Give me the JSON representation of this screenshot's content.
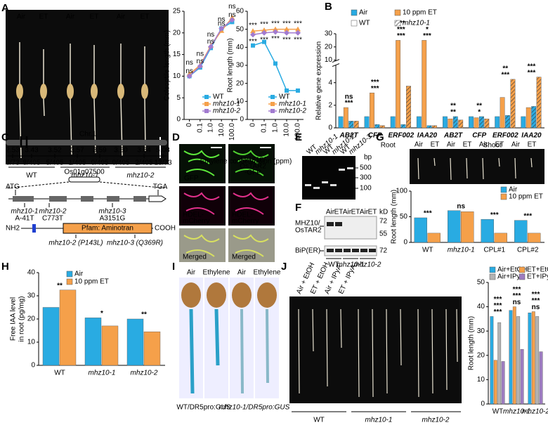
{
  "chart_data": [
    {
      "type": "line",
      "ylabel": "Coleoptile length (mm)",
      "xlabel": "Ethylene concentration (ppm)",
      "categories": [
        "0",
        "0.1",
        "1.0",
        "10.0",
        "100.0"
      ],
      "ylim": [
        0,
        25
      ],
      "yticks": [
        0,
        5,
        10,
        15,
        20,
        25
      ],
      "legend": "lower right",
      "series": [
        {
          "name": "WT",
          "color": "#29abe2",
          "marker": "square",
          "values": [
            10,
            12,
            16.5,
            21,
            22.5
          ]
        },
        {
          "name": "mhz10-1",
          "color": "#f5a04a",
          "marker": "triangle",
          "values": [
            10.5,
            12.5,
            17,
            20.5,
            23.5
          ],
          "point_labels": [
            "ns",
            "ns",
            "ns",
            "ns",
            "ns"
          ]
        },
        {
          "name": "mhz10-2",
          "color": "#a27bd0",
          "marker": "diamond",
          "values": [
            10,
            12.3,
            16.8,
            21,
            23
          ],
          "point_labels": [
            "ns",
            "ns",
            "ns",
            "ns",
            "ns"
          ]
        }
      ]
    },
    {
      "type": "line",
      "ylabel": "Root length (mm)",
      "categories": [
        "0",
        "0.1",
        "1.0",
        "10.0",
        "100.0"
      ],
      "ylim": [
        0,
        60
      ],
      "yticks": [
        0,
        10,
        20,
        30,
        40,
        50,
        60
      ],
      "legend": "lower right",
      "series": [
        {
          "name": "WT",
          "color": "#29abe2",
          "marker": "square",
          "values": [
            41,
            43,
            31,
            16,
            16
          ]
        },
        {
          "name": "mhz10-1",
          "color": "#f5a04a",
          "marker": "triangle",
          "values": [
            49,
            49.5,
            50,
            50,
            50
          ],
          "point_labels": [
            "***",
            "***",
            "***",
            "***",
            "***"
          ]
        },
        {
          "name": "mhz10-2",
          "color": "#a27bd0",
          "marker": "diamond",
          "values": [
            47,
            48,
            48.5,
            48,
            48
          ],
          "point_labels": [
            "***",
            "***",
            "***",
            "***",
            "***"
          ]
        }
      ]
    },
    {
      "type": "bar",
      "ylabel": "Relative gene expression",
      "categories": [
        "AB2T",
        "CFP",
        "ERF002",
        "IAA20",
        "AB2T",
        "CFP",
        "ERF002",
        "IAA20"
      ],
      "group_labels": [
        "Root",
        "Shoot"
      ],
      "ylim": [
        0,
        30
      ],
      "ybreak": [
        5.5,
        10
      ],
      "yticks": [
        0,
        2,
        4,
        10,
        20,
        30
      ],
      "legend": [
        "Air",
        "10 ppm ET",
        "WT",
        "mhz10-1"
      ],
      "legend_colors": [
        "#29abe2",
        "#f5a04a",
        "#ffffff",
        "#ffffff"
      ],
      "legend_hatch": [
        false,
        false,
        false,
        true
      ],
      "series": [
        {
          "color": "#29abe2",
          "hatch": false,
          "values": [
            1,
            1,
            1,
            1,
            1,
            1,
            1,
            1
          ]
        },
        {
          "color": "#f5a04a",
          "hatch": false,
          "values": [
            1.8,
            3.1,
            25,
            25,
            0.8,
            0.9,
            2.7,
            1.8
          ]
        },
        {
          "color": "#29abe2",
          "hatch": true,
          "values": [
            0.6,
            0.3,
            0.3,
            0.2,
            1,
            1,
            1.1,
            1.9
          ]
        },
        {
          "color": "#f5a04a",
          "hatch": true,
          "values": [
            0.6,
            0.2,
            3.7,
            0.2,
            0.7,
            0.8,
            4.3,
            4.5
          ]
        }
      ],
      "significance": [
        [
          "***",
          "ns"
        ],
        [
          "***",
          "***"
        ],
        [
          "***",
          "***",
          "***"
        ],
        [
          "***",
          "*"
        ],
        [
          "**",
          "**"
        ],
        [
          "*",
          "**"
        ],
        [
          "***",
          "**"
        ],
        [
          "***",
          "***"
        ]
      ]
    },
    {
      "type": "bar",
      "ylabel": "Root length (mm)",
      "categories": [
        "WT",
        "mhz10-1",
        "CPL#1",
        "CPL#2"
      ],
      "ylim": [
        0,
        100
      ],
      "yticks": [
        0,
        50,
        100
      ],
      "legend": "upper right",
      "series": [
        {
          "name": "Air",
          "color": "#29abe2",
          "values": [
            48,
            62,
            45,
            43
          ]
        },
        {
          "name": "10 ppm ET",
          "color": "#f5a04a",
          "values": [
            18,
            60,
            18,
            18
          ]
        }
      ],
      "significance": [
        [
          "***"
        ],
        [
          "ns"
        ],
        [
          "***"
        ],
        [
          "***"
        ]
      ]
    },
    {
      "type": "bar",
      "ylabel": [
        "Free IAA level",
        "in root (pg/mg)"
      ],
      "categories": [
        "WT",
        "mhz10-1",
        "mhz10-2"
      ],
      "ylim": [
        0,
        40
      ],
      "yticks": [
        0,
        10,
        20,
        30,
        40
      ],
      "legend": "upper left",
      "series": [
        {
          "name": "Air",
          "color": "#29abe2",
          "values": [
            25,
            20.5,
            20
          ]
        },
        {
          "name": "10 ppm ET",
          "color": "#f5a04a",
          "values": [
            32.5,
            17,
            14.5
          ]
        }
      ],
      "significance": [
        [
          "**"
        ],
        [
          "*"
        ],
        [
          "**"
        ]
      ]
    },
    {
      "type": "bar",
      "ylabel": "Root length (mm)",
      "categories": [
        "WT",
        "mhz10-1",
        "mhz10-2"
      ],
      "ylim": [
        0,
        50
      ],
      "yticks": [
        0,
        10,
        20,
        30,
        40,
        50
      ],
      "legend": "upper left",
      "series": [
        {
          "name": "Air+EtOH",
          "color": "#29abe2",
          "values": [
            36,
            38.5,
            37.5
          ]
        },
        {
          "name": "ET+EtOH",
          "color": "#f5a04a",
          "values": [
            18,
            40,
            38
          ]
        },
        {
          "name": "Air+IPyA",
          "color": "#b3b3b3",
          "values": [
            33.5,
            36,
            36
          ]
        },
        {
          "name": "ET+IPyA",
          "color": "#9e7cc1",
          "values": [
            17.5,
            22.5,
            21.5
          ]
        }
      ],
      "significance": [
        [
          "***",
          "***",
          "***"
        ],
        [
          "ns",
          "***",
          "***"
        ],
        [
          "ns",
          "***",
          "***"
        ]
      ]
    }
  ],
  "panels": {
    "letters": [
      "A",
      "B",
      "C",
      "D",
      "E",
      "F",
      "G",
      "H",
      "I",
      "J"
    ],
    "a_photo": {
      "treatments": [
        "Air",
        "ET",
        "Air",
        "ET",
        "Air",
        "ET"
      ],
      "genotypes": [
        "WT",
        "mhz10-1",
        "mhz10-2"
      ]
    },
    "c_map": {
      "chromosome": "Chr.1",
      "positions": [
        "2.53",
        "3.43",
        "3.52",
        "3.57",
        "3.59",
        "3.60",
        "3.84",
        "5.08"
      ],
      "recombinants": [
        "6/73",
        "8/405",
        "5/405",
        "1/405",
        "0/405",
        "0/405",
        "2/405",
        "13/73"
      ],
      "gene": "Os01g07500",
      "start": "ATG",
      "stop": "TGA",
      "mutations": [
        {
          "allele": "mhz10-1",
          "change": "A-41T"
        },
        {
          "allele": "mhz10-2",
          "change": "C773T"
        },
        {
          "allele": "mhz10-3",
          "change": "A3151G"
        }
      ],
      "protein": {
        "n_term": "NH2",
        "domain": "Pfam: Aminotran",
        "c_term": "COOH",
        "substitutions": [
          "mhz10-2 (P143L)",
          "mhz10-3 (Q369R)"
        ]
      }
    },
    "d_images": {
      "labels": [
        "GFP",
        "MHZ10/",
        "OsTAR2",
        "-GFP",
        "HDEL-",
        "mCherry",
        "HDEL-",
        "mCherry",
        "Merged",
        "Merged"
      ]
    },
    "e_gel": {
      "lanes": [
        "WT",
        "mhz10-1",
        "WT",
        "mhz10-2",
        "WT",
        "mhz10-3"
      ],
      "unit": "bp",
      "markers": [
        "500",
        "300",
        "100"
      ]
    },
    "f_blot": {
      "treatments": [
        "Air",
        "ET",
        "Air",
        "ET",
        "Air",
        "ET"
      ],
      "proteins": [
        "MHZ10/",
        "OsTAR2",
        "BiP(ER)"
      ],
      "unit": "kD",
      "markers": [
        "72",
        "55",
        "72"
      ],
      "genotypes": [
        "WT",
        "mhz10-1",
        "mhz10-2"
      ]
    },
    "g_photo": {
      "treatments": [
        "Air",
        "ET",
        "Air",
        "ET",
        "Air",
        "ET",
        "Air",
        "ET"
      ]
    },
    "i_images": {
      "treatments": [
        "Air",
        "Ethylene",
        "Air",
        "Ethylene"
      ],
      "genotypes": [
        "WT/DR5pro:GUS",
        "mhz10-1/DR5pro:GUS"
      ]
    },
    "j_photo": {
      "treatments": [
        "Air + EtOH",
        "ET + EtOH",
        "Air + IPyA",
        "ET + IPyA"
      ],
      "genotypes": [
        "WT",
        "mhz10-1",
        "mhz10-2"
      ]
    }
  }
}
